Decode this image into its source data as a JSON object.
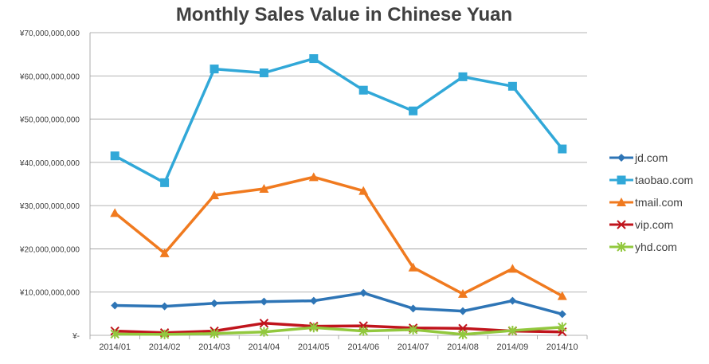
{
  "chart_data": {
    "type": "line",
    "title": "Monthly Sales Value in Chinese Yuan",
    "xlabel": "",
    "ylabel": "",
    "categories": [
      "2014/01",
      "2014/02",
      "2014/03",
      "2014/04",
      "2014/05",
      "2014/06",
      "2014/07",
      "2014/08",
      "2014/09",
      "2014/10"
    ],
    "ylim": [
      0,
      70000000000
    ],
    "yticks": [
      0,
      10000000000,
      20000000000,
      30000000000,
      40000000000,
      50000000000,
      60000000000,
      70000000000
    ],
    "ytick_labels": [
      "¥-",
      "¥10,000,000,000",
      "¥20,000,000,000",
      "¥30,000,000,000",
      "¥40,000,000,000",
      "¥50,000,000,000",
      "¥60,000,000,000",
      "¥70,000,000,000"
    ],
    "grid": true,
    "legend_position": "right",
    "series": [
      {
        "name": "jd.com",
        "color": "#2e75b6",
        "marker": "diamond",
        "values": [
          6900000000,
          6700000000,
          7400000000,
          7800000000,
          8000000000,
          9800000000,
          6200000000,
          5600000000,
          8000000000,
          4900000000
        ]
      },
      {
        "name": "taobao.com",
        "color": "#31a8d8",
        "marker": "square",
        "values": [
          41500000000,
          35300000000,
          61600000000,
          60700000000,
          64000000000,
          56700000000,
          51900000000,
          59800000000,
          57600000000,
          43100000000
        ]
      },
      {
        "name": "tmail.com",
        "color": "#f07a1f",
        "marker": "triangle",
        "values": [
          28300000000,
          19000000000,
          32400000000,
          33900000000,
          36600000000,
          33400000000,
          15700000000,
          9600000000,
          15400000000,
          9100000000
        ]
      },
      {
        "name": "vip.com",
        "color": "#c0141c",
        "marker": "x",
        "values": [
          1000000000,
          600000000,
          1000000000,
          2800000000,
          2100000000,
          2200000000,
          1700000000,
          1600000000,
          1000000000,
          800000000
        ]
      },
      {
        "name": "yhd.com",
        "color": "#92c83e",
        "marker": "star",
        "values": [
          300000000,
          200000000,
          400000000,
          800000000,
          1800000000,
          1000000000,
          1300000000,
          200000000,
          1100000000,
          1900000000
        ]
      }
    ]
  }
}
